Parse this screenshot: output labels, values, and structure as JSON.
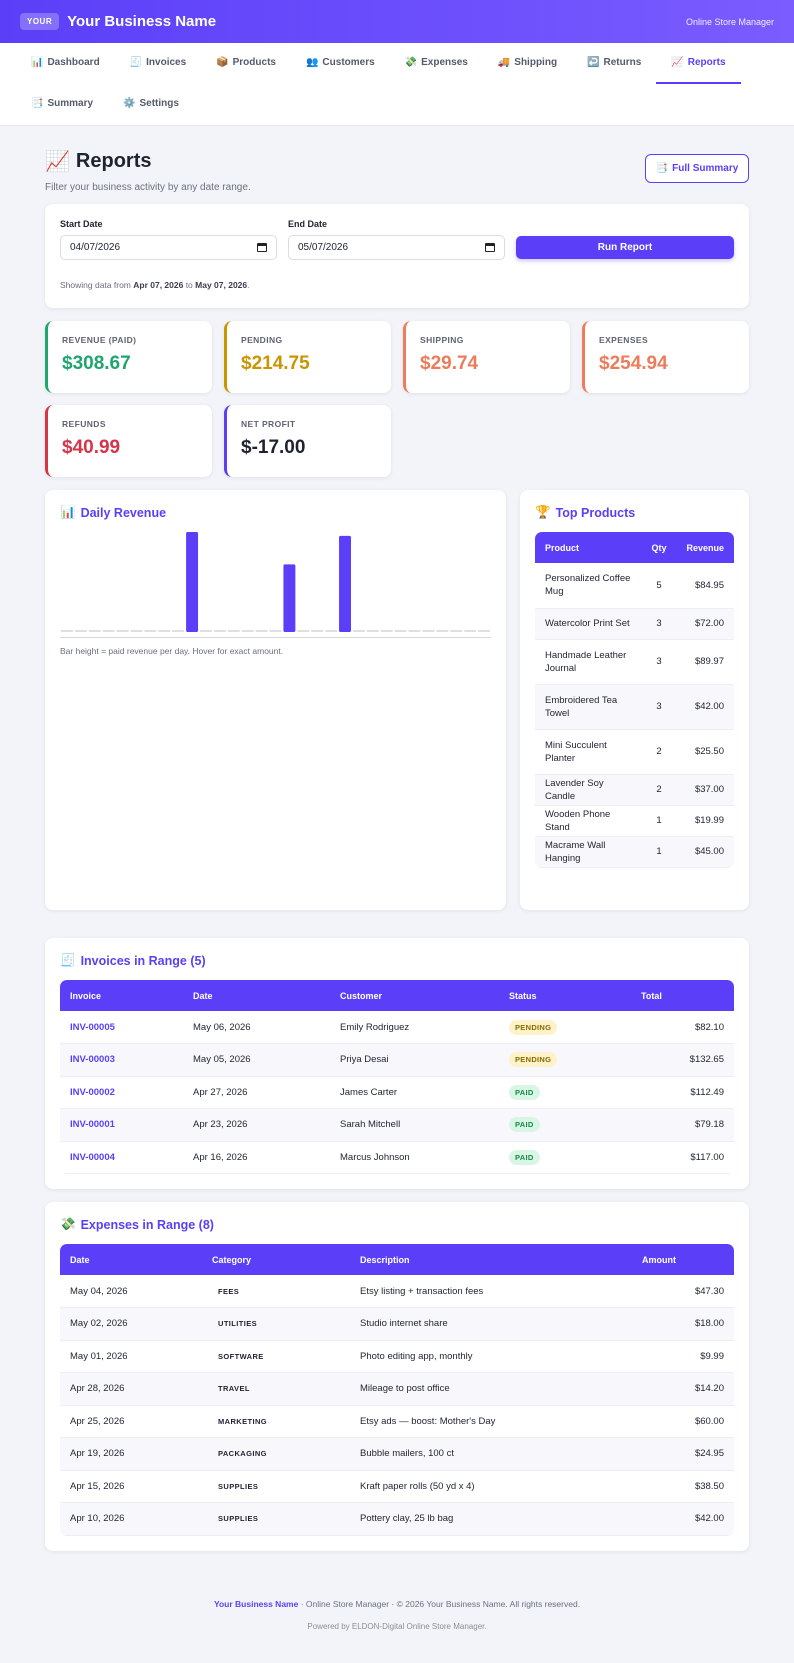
{
  "header": {
    "logo_text": "YOUR",
    "business_name": "Your Business Name",
    "right_label": "Online Store Manager"
  },
  "nav": {
    "items": [
      {
        "icon": "📊",
        "label": "Dashboard",
        "name": "dashboard"
      },
      {
        "icon": "🧾",
        "label": "Invoices",
        "name": "invoices"
      },
      {
        "icon": "📦",
        "label": "Products",
        "name": "products"
      },
      {
        "icon": "👥",
        "label": "Customers",
        "name": "customers"
      },
      {
        "icon": "💸",
        "label": "Expenses",
        "name": "expenses"
      },
      {
        "icon": "🚚",
        "label": "Shipping",
        "name": "shipping"
      },
      {
        "icon": "↩️",
        "label": "Returns",
        "name": "returns"
      },
      {
        "icon": "📈",
        "label": "Reports",
        "name": "reports",
        "active": true
      },
      {
        "icon": "📑",
        "label": "Summary",
        "name": "summary"
      },
      {
        "icon": "⚙️",
        "label": "Settings",
        "name": "settings"
      }
    ]
  },
  "page": {
    "icon": "📈",
    "title": "Reports",
    "subtitle": "Filter your business activity by any date range.",
    "summary_icon": "📑",
    "summary_button": "Full Summary"
  },
  "filter": {
    "start_label": "Start Date",
    "start_value": "04/07/2026",
    "end_label": "End Date",
    "end_value": "05/07/2026",
    "run_button": "Run Report",
    "note_prefix": "Showing data from ",
    "note_from": "Apr 07, 2026",
    "note_mid": " to ",
    "note_to": "May 07, 2026",
    "note_suffix": "."
  },
  "stats": [
    {
      "label": "REVENUE (PAID)",
      "value": "$308.67",
      "color": "#1fa56e",
      "name": "revenue"
    },
    {
      "label": "PENDING",
      "value": "$214.75",
      "color": "#c99500",
      "name": "pending"
    },
    {
      "label": "SHIPPING",
      "value": "$29.74",
      "color": "#ee7b5a",
      "name": "shipping"
    },
    {
      "label": "EXPENSES",
      "value": "$254.94",
      "color": "#ee7b5a",
      "name": "expenses"
    },
    {
      "label": "REFUNDS",
      "value": "$40.99",
      "color": "#d63447",
      "name": "refunds"
    },
    {
      "label": "NET PROFIT",
      "value": "$-17.00",
      "color": "#1f2230",
      "border": "#5b3ff8",
      "name": "net-profit"
    }
  ],
  "daily_revenue": {
    "icon": "📊",
    "title": "Daily Revenue",
    "note": "Bar height = paid revenue per day. Hover for exact amount.",
    "chart_data": {
      "type": "bar",
      "series": [
        {
          "values": [
            0,
            0,
            0,
            0,
            0,
            0,
            0,
            0,
            0,
            117.0,
            0,
            0,
            0,
            0,
            0,
            0,
            79.18,
            0,
            0,
            0,
            112.49,
            0,
            0,
            0,
            0,
            0,
            0,
            0,
            0,
            0,
            0
          ]
        }
      ],
      "color": "#5b3ff8",
      "zero_color": "#dcdfe8"
    }
  },
  "top_products": {
    "icon": "🏆",
    "title": "Top Products",
    "headers": [
      "Product",
      "Qty",
      "Revenue"
    ],
    "rows": [
      {
        "product": "Personalized Coffee Mug",
        "qty": "5",
        "revenue": "$84.95"
      },
      {
        "product": "Watercolor Print Set",
        "qty": "3",
        "revenue": "$72.00"
      },
      {
        "product": "Handmade Leather Journal",
        "qty": "3",
        "revenue": "$89.97"
      },
      {
        "product": "Embroidered Tea Towel",
        "qty": "3",
        "revenue": "$42.00"
      },
      {
        "product": "Mini Succulent Planter",
        "qty": "2",
        "revenue": "$25.50"
      },
      {
        "product": "Lavender Soy Candle",
        "qty": "2",
        "revenue": "$37.00"
      },
      {
        "product": "Wooden Phone Stand",
        "qty": "1",
        "revenue": "$19.99"
      },
      {
        "product": "Macrame Wall Hanging",
        "qty": "1",
        "revenue": "$45.00"
      }
    ]
  },
  "invoices": {
    "icon": "🧾",
    "title": "Invoices in Range (5)",
    "headers": [
      "Invoice",
      "Date",
      "Customer",
      "Status",
      "Total"
    ],
    "rows": [
      {
        "id": "INV-00005",
        "date": "May 06, 2026",
        "customer": "Emily Rodriguez",
        "status": "PENDING",
        "total": "$82.10"
      },
      {
        "id": "INV-00003",
        "date": "May 05, 2026",
        "customer": "Priya Desai",
        "status": "PENDING",
        "total": "$132.65"
      },
      {
        "id": "INV-00002",
        "date": "Apr 27, 2026",
        "customer": "James Carter",
        "status": "PAID",
        "total": "$112.49"
      },
      {
        "id": "INV-00001",
        "date": "Apr 23, 2026",
        "customer": "Sarah Mitchell",
        "status": "PAID",
        "total": "$79.18"
      },
      {
        "id": "INV-00004",
        "date": "Apr 16, 2026",
        "customer": "Marcus Johnson",
        "status": "PAID",
        "total": "$117.00"
      }
    ]
  },
  "expenses": {
    "icon": "💸",
    "title": "Expenses in Range (8)",
    "headers": [
      "Date",
      "Category",
      "Description",
      "Amount"
    ],
    "rows": [
      {
        "date": "May 04, 2026",
        "category": "FEES",
        "description": "Etsy listing + transaction fees",
        "amount": "$47.30"
      },
      {
        "date": "May 02, 2026",
        "category": "UTILITIES",
        "description": "Studio internet share",
        "amount": "$18.00"
      },
      {
        "date": "May 01, 2026",
        "category": "SOFTWARE",
        "description": "Photo editing app, monthly",
        "amount": "$9.99"
      },
      {
        "date": "Apr 28, 2026",
        "category": "TRAVEL",
        "description": "Mileage to post office",
        "amount": "$14.20"
      },
      {
        "date": "Apr 25, 2026",
        "category": "MARKETING",
        "description": "Etsy ads — boost: Mother's Day",
        "amount": "$60.00"
      },
      {
        "date": "Apr 19, 2026",
        "category": "PACKAGING",
        "description": "Bubble mailers, 100 ct",
        "amount": "$24.95"
      },
      {
        "date": "Apr 15, 2026",
        "category": "SUPPLIES",
        "description": "Kraft paper rolls (50 yd x 4)",
        "amount": "$38.50"
      },
      {
        "date": "Apr 10, 2026",
        "category": "SUPPLIES",
        "description": "Pottery clay, 25 lb bag",
        "amount": "$42.00"
      }
    ]
  },
  "footer": {
    "brand": "Your Business Name",
    "line1": " · Online Store Manager · © 2026 Your Business Name. All rights reserved.",
    "line2": "Powered by ELDON-Digital Online Store Manager."
  }
}
